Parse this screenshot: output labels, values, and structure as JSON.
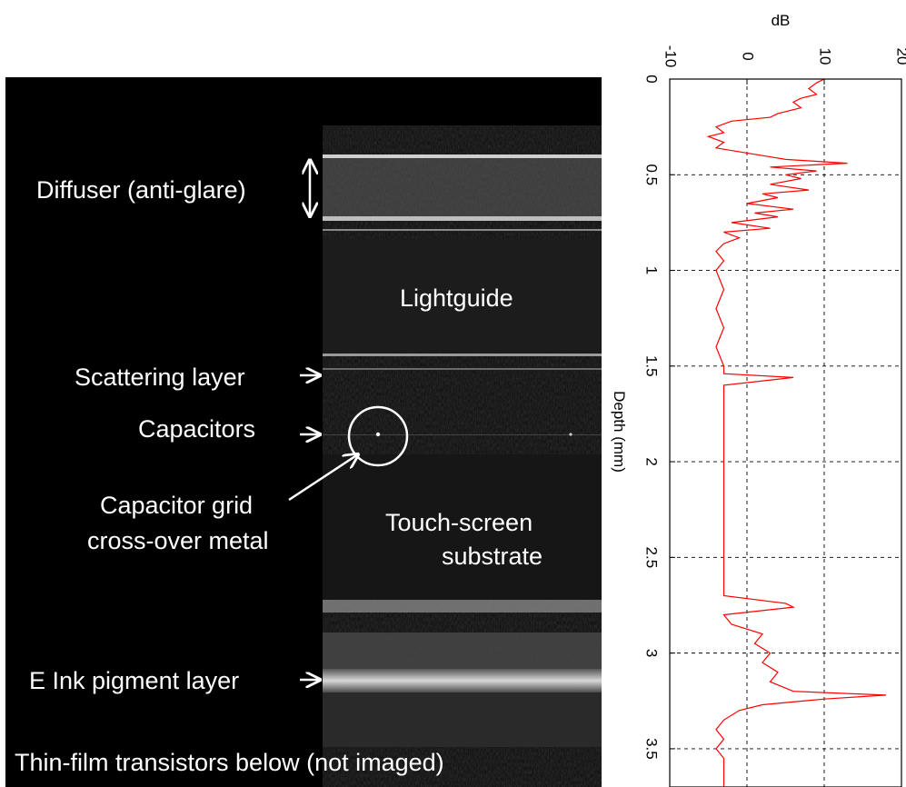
{
  "figure": {
    "labels": {
      "diffuser": "Diffuser (anti-glare)",
      "lightguide": "Lightguide",
      "scattering": "Scattering layer",
      "capacitors": "Capacitors",
      "grid_line1": "Capacitor grid",
      "grid_line2": "cross-over metal",
      "touch_line1": "Touch-screen",
      "touch_line2": "substrate",
      "eink": "E Ink pigment layer",
      "tft": "Thin-film  transistors below  (not imaged)"
    }
  },
  "chart_data": {
    "type": "line",
    "orientation": "vertical-depth",
    "xlabel": "dB",
    "ylabel": "Depth (mm)",
    "xlim": [
      -10,
      20
    ],
    "ylim": [
      0,
      3.7
    ],
    "xticks": [
      "-10",
      "0",
      "10",
      "20"
    ],
    "yticks": [
      "0",
      "0.5",
      "1",
      "1.5",
      "2",
      "2.5",
      "3",
      "3.5"
    ],
    "grid": true,
    "line_color": "#ff0000",
    "series": [
      {
        "depth": [
          0.0,
          0.02,
          0.05,
          0.08,
          0.1,
          0.12,
          0.15,
          0.18,
          0.2,
          0.22,
          0.25,
          0.28,
          0.3,
          0.33,
          0.36,
          0.4,
          0.42,
          0.44,
          0.46,
          0.48,
          0.5,
          0.52,
          0.55,
          0.58,
          0.6,
          0.62,
          0.65,
          0.68,
          0.7,
          0.72,
          0.75,
          0.78,
          0.8,
          0.83,
          0.86,
          0.9,
          0.95,
          1.0,
          1.1,
          1.2,
          1.3,
          1.4,
          1.5,
          1.54,
          1.56,
          1.6,
          1.7,
          1.8,
          1.9,
          2.0,
          2.1,
          2.2,
          2.3,
          2.4,
          2.5,
          2.6,
          2.7,
          2.74,
          2.76,
          2.8,
          2.85,
          2.9,
          2.95,
          3.0,
          3.05,
          3.1,
          3.15,
          3.2,
          3.22,
          3.24,
          3.27,
          3.3,
          3.35,
          3.4,
          3.45,
          3.5,
          3.55,
          3.6,
          3.65,
          3.7
        ],
        "db": [
          10,
          9,
          8,
          9,
          7,
          6,
          7,
          4,
          3,
          -2,
          -4,
          -3,
          -5,
          -3,
          -4,
          2,
          5,
          13,
          3,
          9,
          5,
          7,
          3,
          8,
          2,
          4,
          0,
          6,
          1,
          4,
          -2,
          3,
          -3,
          -1,
          -3,
          -4,
          -3,
          -4,
          -3,
          -4,
          -3,
          -4,
          -3,
          -3,
          6,
          -3,
          -3,
          -3,
          -3,
          -3,
          -3,
          -3,
          -3,
          -3,
          -3,
          -3,
          -3,
          5,
          6,
          -3,
          -2,
          2,
          1,
          3,
          2,
          4,
          3,
          6,
          18,
          10,
          2,
          -1,
          -3,
          -4,
          -3,
          -4,
          -3,
          -3,
          -3,
          -3
        ]
      }
    ]
  }
}
